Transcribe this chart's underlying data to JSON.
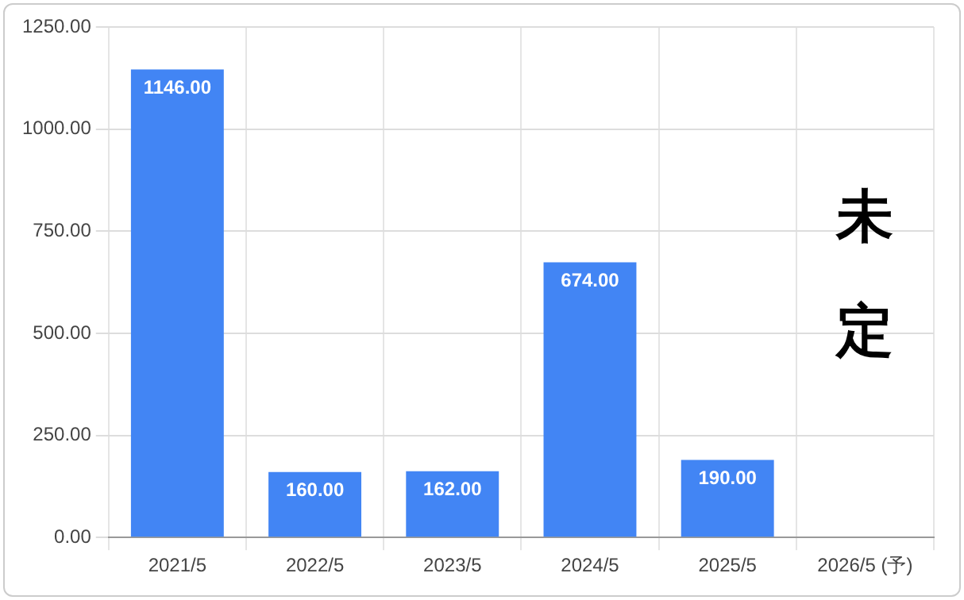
{
  "chart_data": {
    "type": "bar",
    "categories": [
      "2021/5",
      "2022/5",
      "2023/5",
      "2024/5",
      "2025/5",
      "2026/5 (予)"
    ],
    "values": [
      1146,
      160,
      162,
      674,
      190,
      null
    ],
    "value_labels": [
      "1146.00",
      "160.00",
      "162.00",
      "674.00",
      "190.00",
      null
    ],
    "color": "#4285f4",
    "ylim": [
      0,
      1250
    ],
    "yticks": [
      {
        "value": 0,
        "label": "0.00"
      },
      {
        "value": 250,
        "label": "250.00"
      },
      {
        "value": 500,
        "label": "500.00"
      },
      {
        "value": 750,
        "label": "750.00"
      },
      {
        "value": 1000,
        "label": "1000.00"
      },
      {
        "value": 1250,
        "label": "1250.00"
      }
    ],
    "grid": true,
    "annotations": [
      "未定"
    ]
  }
}
